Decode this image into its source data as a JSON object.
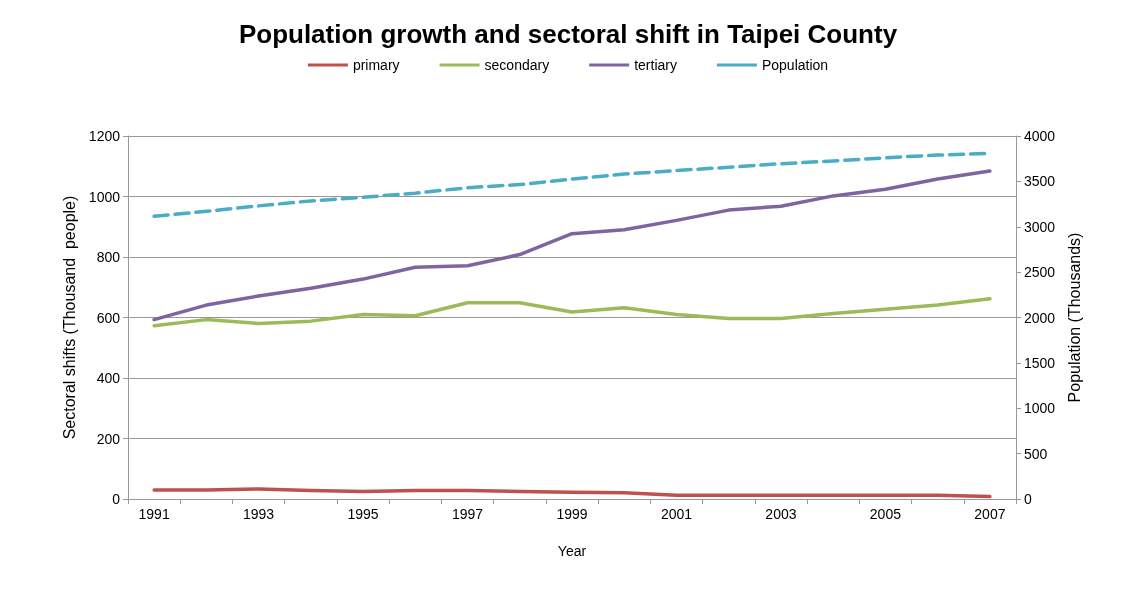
{
  "chart_data": {
    "type": "line",
    "title": "Population growth and sectoral shift in Taipei County",
    "xlabel": "Year",
    "ylabel": "Sectoral shifts (Thousand  people)",
    "y2label": "Population (Thousands)",
    "categories": [
      "1991",
      null,
      "1993",
      null,
      "1995",
      null,
      "1997",
      null,
      "1999",
      null,
      "2001",
      null,
      "2003",
      null,
      "2005",
      null,
      "2007"
    ],
    "series": [
      {
        "name": "primary",
        "color": "#c0504d",
        "values": [
          30,
          30,
          33,
          28,
          25,
          28,
          28,
          25,
          22,
          21,
          12,
          12,
          12,
          12,
          12,
          12,
          8
        ]
      },
      {
        "name": "secondary",
        "color": "#9bbb59",
        "values": [
          573,
          593,
          580,
          588,
          610,
          606,
          649,
          649,
          618,
          632,
          610,
          597,
          597,
          613,
          627,
          641,
          662
        ]
      },
      {
        "name": "tertiary",
        "color": "#8064a2",
        "values": [
          593,
          641,
          671,
          697,
          727,
          766,
          771,
          808,
          877,
          890,
          921,
          955,
          968,
          1002,
          1024,
          1058,
          1084
        ]
      },
      {
        "name": "Population",
        "color": "#4bacc6",
        "axis": "y2",
        "line_style": "dashed",
        "values": [
          3116,
          3170,
          3230,
          3285,
          3325,
          3370,
          3430,
          3465,
          3525,
          3580,
          3620,
          3655,
          3695,
          3725,
          3760,
          3790,
          3810
        ]
      }
    ],
    "ylim": [
      0,
      1200
    ],
    "yticks": [
      0,
      200,
      400,
      600,
      800,
      1000,
      1200
    ],
    "y2lim": [
      0,
      4000
    ],
    "y2ticks": [
      0,
      500,
      1000,
      1500,
      2000,
      2500,
      3000,
      3500,
      4000
    ],
    "grid": "y",
    "legend": "top",
    "marker": "none"
  }
}
